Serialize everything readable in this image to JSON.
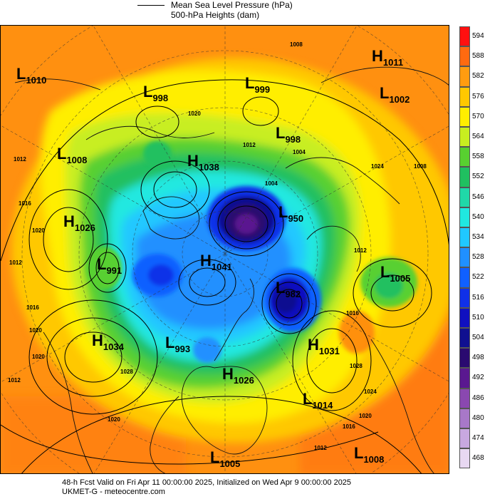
{
  "legend": {
    "line1": "Mean Sea Level Pressure (hPa)",
    "line2": "500-hPa Heights (dam)"
  },
  "colorbar": [
    {
      "value": "594",
      "color": "#ff1010"
    },
    {
      "value": "588",
      "color": "#ff6a10"
    },
    {
      "value": "582",
      "color": "#ff9c10"
    },
    {
      "value": "576",
      "color": "#ffc800"
    },
    {
      "value": "570",
      "color": "#ffee00"
    },
    {
      "value": "564",
      "color": "#c8ee20"
    },
    {
      "value": "558",
      "color": "#58d030"
    },
    {
      "value": "552",
      "color": "#20c060"
    },
    {
      "value": "546",
      "color": "#20d8a8"
    },
    {
      "value": "540",
      "color": "#20e8e0"
    },
    {
      "value": "534",
      "color": "#20c8ff"
    },
    {
      "value": "528",
      "color": "#2090ff"
    },
    {
      "value": "522",
      "color": "#1060ff"
    },
    {
      "value": "516",
      "color": "#1030e8"
    },
    {
      "value": "510",
      "color": "#1010c0"
    },
    {
      "value": "504",
      "color": "#101090"
    },
    {
      "value": "498",
      "color": "#2a0a70"
    },
    {
      "value": "492",
      "color": "#5a1890"
    },
    {
      "value": "486",
      "color": "#8a48b0"
    },
    {
      "value": "480",
      "color": "#a878c8"
    },
    {
      "value": "474",
      "color": "#c8a8e0"
    },
    {
      "value": "468",
      "color": "#e8d8f2"
    }
  ],
  "systems": [
    {
      "type": "L",
      "value": "1010"
    },
    {
      "type": "L",
      "value": "998"
    },
    {
      "type": "L",
      "value": "999"
    },
    {
      "type": "H",
      "value": "1011"
    },
    {
      "type": "L",
      "value": "1002"
    },
    {
      "type": "L",
      "value": "1008"
    },
    {
      "type": "H",
      "value": "1038"
    },
    {
      "type": "L",
      "value": "998"
    },
    {
      "type": "H",
      "value": "1026"
    },
    {
      "type": "L",
      "value": "950"
    },
    {
      "type": "L",
      "value": "991"
    },
    {
      "type": "H",
      "value": "1041"
    },
    {
      "type": "L",
      "value": "1005"
    },
    {
      "type": "L",
      "value": "982"
    },
    {
      "type": "H",
      "value": "1034"
    },
    {
      "type": "L",
      "value": "993"
    },
    {
      "type": "H",
      "value": "1031"
    },
    {
      "type": "H",
      "value": "1026"
    },
    {
      "type": "L",
      "value": "1014"
    },
    {
      "type": "L",
      "value": "1005"
    },
    {
      "type": "L",
      "value": "1008"
    }
  ],
  "isobar_labels": [
    "1008",
    "1020",
    "1012",
    "1004",
    "1012",
    "1016",
    "1020",
    "1012",
    "1016",
    "1020",
    "1024",
    "1012",
    "1016",
    "1020",
    "1028",
    "1028",
    "1024",
    "1020",
    "1016",
    "1012",
    "1020",
    "1012",
    "1008",
    "1004"
  ],
  "footer": {
    "line1": "48-h Fcst Valid on Fri Apr 11 00:00:00 2025, Initialized on Wed Apr  9 00:00:00 2025",
    "line2": "UKMET-G  - meteocentre.com"
  }
}
